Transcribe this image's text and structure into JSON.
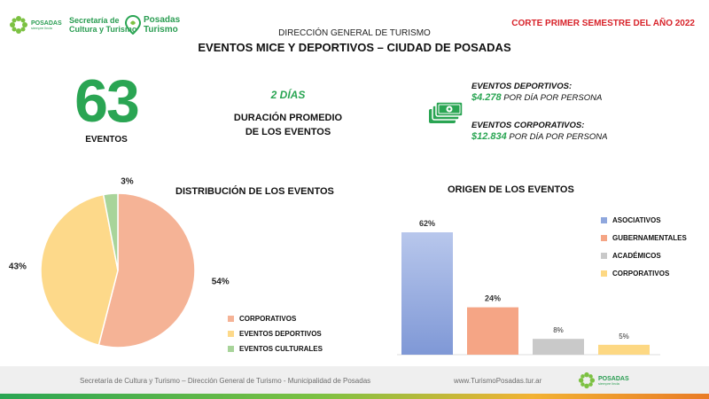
{
  "header": {
    "logo_posadas": {
      "name": "POSADAS",
      "tagline": "siempre linda"
    },
    "logo_secretaria": {
      "line1": "Secretaría de",
      "line2": "Cultura y Turismo"
    },
    "logo_turismo": {
      "line1": "Posadas",
      "line2": "Turismo"
    },
    "subtitle": "DIRECCIÓN GENERAL DE TURISMO",
    "title": "EVENTOS MICE Y DEPORTIVOS – CIUDAD DE POSADAS",
    "corte": "CORTE PRIMER SEMESTRE DEL AÑO 2022"
  },
  "kpis": {
    "total_eventos": "63",
    "eventos_label": "EVENTOS",
    "dias": "2 DÍAS",
    "duracion_line1": "DURACIÓN PROMEDIO",
    "duracion_line2": "DE LOS EVENTOS",
    "deportivos_label": "EVENTOS DEPORTIVOS:",
    "deportivos_amount": "$4.278",
    "deportivos_suffix": "POR DÍA POR PERSONA",
    "corporativos_label": "EVENTOS CORPORATIVOS:",
    "corporativos_amount": "$12.834",
    "corporativos_suffix": "POR DÍA POR PERSONA",
    "money_icon": "money-bills-icon"
  },
  "colors": {
    "green": "#2aa553",
    "red": "#d8232a",
    "corporativos": "#f5b396",
    "deportivos": "#fdd98a",
    "culturales": "#a8d49a",
    "asociativos": "#8fa7dd",
    "gubernamentales": "#f5a585",
    "academicos": "#c9c9c9",
    "corporativos_bar": "#fdd883"
  },
  "chart_data": [
    {
      "type": "pie",
      "title": "DISTRIBUCIÓN DE LOS EVENTOS",
      "slices": [
        {
          "label": "CORPORATIVOS",
          "value": 54,
          "display": "54%"
        },
        {
          "label": "EVENTOS DEPORTIVOS",
          "value": 43,
          "display": "43%"
        },
        {
          "label": "EVENTOS CULTURALES",
          "value": 3,
          "display": "3%"
        }
      ],
      "legend_position": "bottom-right"
    },
    {
      "type": "bar",
      "title": "ORIGEN DE LOS EVENTOS",
      "categories": [
        "ASOCIATIVOS",
        "GUBERNAMENTALES",
        "ACADÉMICOS",
        "CORPORATIVOS"
      ],
      "values": [
        62,
        24,
        8,
        5
      ],
      "labels": [
        "62%",
        "24%",
        "8%",
        "5%"
      ],
      "ylim": [
        0,
        62
      ],
      "legend_position": "right"
    }
  ],
  "footer": {
    "text": "Secretaría de Cultura y Turismo – Dirección General de Turismo - Municipalidad de Posadas",
    "url": "www.TurismoPosadas.tur.ar",
    "logo_name": "POSADAS",
    "logo_tagline": "siempre linda"
  }
}
